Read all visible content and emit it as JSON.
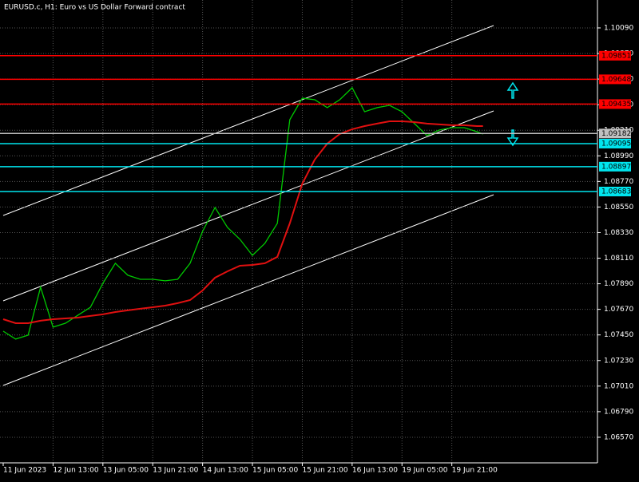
{
  "chart_data": {
    "type": "line",
    "title": "EURUSD.c, H1:  Euro vs US Dollar Forward contract",
    "x": [
      0,
      4,
      8,
      12,
      16,
      20,
      24,
      28,
      32,
      36,
      40,
      44,
      48,
      52,
      56,
      60,
      64,
      68,
      72,
      76,
      80,
      84,
      88,
      92,
      96,
      100,
      104,
      108,
      112,
      116,
      120,
      124,
      128,
      132,
      136,
      140,
      144,
      148,
      152,
      154
    ],
    "xlim": [
      0,
      191
    ],
    "xticks": [
      {
        "value": 0,
        "label": "11 Jun 2023"
      },
      {
        "value": 16,
        "label": "12 Jun 13:00"
      },
      {
        "value": 32,
        "label": "13 Jun 05:00"
      },
      {
        "value": 48,
        "label": "13 Jun 21:00"
      },
      {
        "value": 64,
        "label": "14 Jun 13:00"
      },
      {
        "value": 80,
        "label": "15 Jun 05:00"
      },
      {
        "value": 96,
        "label": "15 Jun 21:00"
      },
      {
        "value": 112,
        "label": "16 Jun 13:00"
      },
      {
        "value": 128,
        "label": "19 Jun 05:00"
      },
      {
        "value": 144,
        "label": "19 Jun 21:00"
      }
    ],
    "ylim": [
      1.0635,
      1.1033
    ],
    "yticks": [
      {
        "value": 1.0657,
        "label": "1.06570"
      },
      {
        "value": 1.0679,
        "label": "1.06790"
      },
      {
        "value": 1.0701,
        "label": "1.07010"
      },
      {
        "value": 1.0723,
        "label": "1.07230"
      },
      {
        "value": 1.0745,
        "label": "1.07450"
      },
      {
        "value": 1.0767,
        "label": "1.07670"
      },
      {
        "value": 1.0789,
        "label": "1.07890"
      },
      {
        "value": 1.0811,
        "label": "1.08110"
      },
      {
        "value": 1.0833,
        "label": "1.08330"
      },
      {
        "value": 1.0855,
        "label": "1.08550"
      },
      {
        "value": 1.0877,
        "label": "1.08770"
      },
      {
        "value": 1.0899,
        "label": "1.08990"
      },
      {
        "value": 1.0921,
        "label": "1.09210"
      },
      {
        "value": 1.0943,
        "label": "1.09430"
      },
      {
        "value": 1.0965,
        "label": "1.09650"
      },
      {
        "value": 1.0987,
        "label": "1.09870"
      },
      {
        "value": 1.1009,
        "label": "1.10090"
      }
    ],
    "grid": true,
    "series": [
      {
        "color": "#00c800",
        "values": [
          1.07482,
          1.07414,
          1.07448,
          1.0786,
          1.07517,
          1.07551,
          1.0762,
          1.07688,
          1.07894,
          1.08066,
          1.07963,
          1.07928,
          1.07928,
          1.07915,
          1.07928,
          1.08066,
          1.0834,
          1.08546,
          1.08374,
          1.08272,
          1.08134,
          1.08237,
          1.08409,
          1.09301,
          1.09486,
          1.09472,
          1.09404,
          1.09472,
          1.09575,
          1.09369,
          1.09404,
          1.09424,
          1.09369,
          1.09267,
          1.09164,
          1.09212,
          1.09232,
          1.09232,
          1.09198,
          1.09177
        ]
      },
      {
        "color": "#e01010",
        "values": [
          1.07585,
          1.07551,
          1.07551,
          1.07572,
          1.07585,
          1.07592,
          1.07599,
          1.07613,
          1.07627,
          1.07647,
          1.07661,
          1.07675,
          1.07688,
          1.07702,
          1.07723,
          1.0775,
          1.07832,
          1.07942,
          1.07997,
          1.08045,
          1.08052,
          1.08066,
          1.08121,
          1.08409,
          1.08752,
          1.08958,
          1.09095,
          1.09177,
          1.09219,
          1.09246,
          1.09267,
          1.09287,
          1.09287,
          1.0928,
          1.09267,
          1.0926,
          1.09253,
          1.09253,
          1.09246,
          1.09246
        ]
      }
    ],
    "resistance_levels": [
      1.09851,
      1.09648,
      1.09435
    ],
    "resistance_color": "#ff0000",
    "support_levels": [
      1.09095,
      1.08897,
      1.08683
    ],
    "support_color": "#00e5ee",
    "last_price": 1.09182,
    "last_price_color": "#c0c0c0"
  }
}
